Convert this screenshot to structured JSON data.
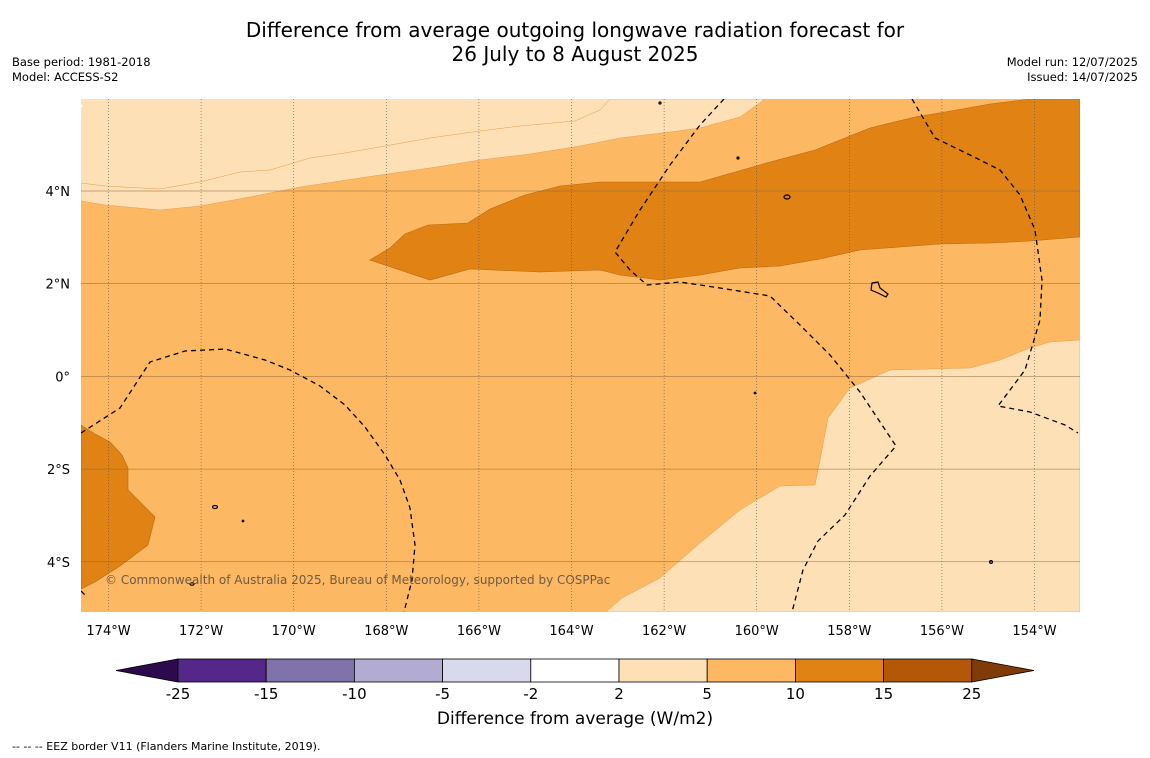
{
  "title_line1": "Difference from average outgoing longwave radiation forecast for",
  "title_line2": "26 July to 8 August 2025",
  "base_period": "Base period: 1981-2018",
  "model": "Model: ACCESS-S2",
  "model_run": "Model run: 12/07/2025",
  "issued": "Issued: 14/07/2025",
  "copyright": "© Commonwealth of Australia 2025, Bureau of Meteorology, supported by COSPPac",
  "x_ticks": [
    "174°W",
    "172°W",
    "170°W",
    "168°W",
    "166°W",
    "164°W",
    "162°W",
    "160°W",
    "158°W",
    "156°W",
    "154°W"
  ],
  "y_ticks": [
    "4°N",
    "2°N",
    "0°",
    "2°S",
    "4°S"
  ],
  "colorbar": {
    "label": "Difference from average (W/m2)",
    "tick_labels": [
      "-25",
      "-15",
      "-10",
      "-5",
      "-2",
      "2",
      "5",
      "10",
      "15",
      "25"
    ],
    "colors": {
      "extend_min": "#2d0a4e",
      "neg_25_15": "#542788",
      "neg_15_10": "#8073ac",
      "neg_10_5": "#b2abd2",
      "neg_5_2": "#d8daeb",
      "neutral": "#ffffff",
      "pos_2_5": "#fee0b6",
      "pos_5_10": "#fdb863",
      "pos_10_15": "#e08214",
      "pos_15_25": "#b35806",
      "extend_max": "#7f3b08"
    }
  },
  "footnote": "--  --  -- EEZ border V11 (Flanders Marine Institute, 2019)."
}
